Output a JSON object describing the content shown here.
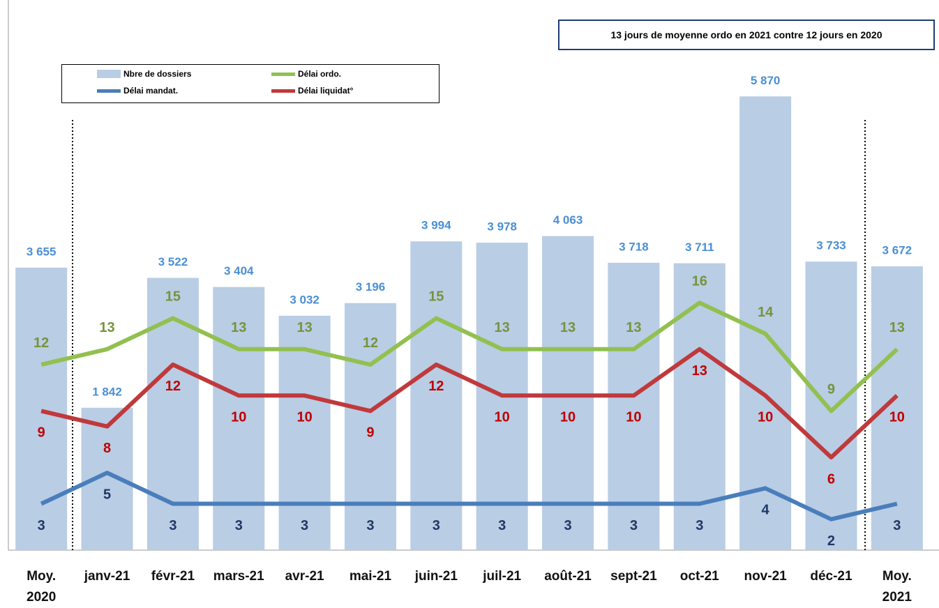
{
  "chart_data": {
    "type": "combo",
    "categories": [
      "Moy.\n2020",
      "janv-21",
      "févr-21",
      "mars-21",
      "avr-21",
      "mai-21",
      "juin-21",
      "juil-21",
      "août-21",
      "sept-21",
      "oct-21",
      "nov-21",
      "déc-21",
      "Moy.\n2021"
    ],
    "series": [
      {
        "name": "Nbre de dossiers",
        "type": "bar",
        "axis": "y",
        "color": "#b9cde5",
        "label_color": "#4a8fd6",
        "values": [
          3655,
          1842,
          3522,
          3404,
          3032,
          3196,
          3994,
          3978,
          4063,
          3718,
          3711,
          5870,
          3733,
          3672
        ],
        "value_labels": [
          "3 655",
          "1 842",
          "3 522",
          "3 404",
          "3 032",
          "3 196",
          "3 994",
          "3 978",
          "4 063",
          "3 718",
          "3 711",
          "5 870",
          "3 733",
          "3 672"
        ]
      },
      {
        "name": "Délai ordo.",
        "type": "line",
        "axis": "y2",
        "color": "#92c050",
        "label_color": "#77933c",
        "values": [
          12,
          13,
          15,
          13,
          13,
          12,
          15,
          13,
          13,
          13,
          16,
          14,
          9,
          13
        ]
      },
      {
        "name": "Délai mandat.",
        "type": "line",
        "axis": "y2",
        "color": "#4a7ebb",
        "label_color": "#1f3864",
        "values": [
          3,
          5,
          3,
          3,
          3,
          3,
          3,
          3,
          3,
          3,
          3,
          4,
          2,
          3
        ]
      },
      {
        "name": "Délai liquidat°",
        "type": "line",
        "axis": "y2",
        "color": "#c0393b",
        "label_color": "#c00000",
        "values": [
          9,
          8,
          12,
          10,
          10,
          9,
          12,
          10,
          10,
          10,
          13,
          10,
          6,
          10
        ]
      }
    ],
    "ylim": [
      0,
      7000
    ],
    "y2lim": [
      0,
      35
    ],
    "annotation": "13 jours de moyenne ordo en 2021 contre 12 jours en 2020"
  }
}
